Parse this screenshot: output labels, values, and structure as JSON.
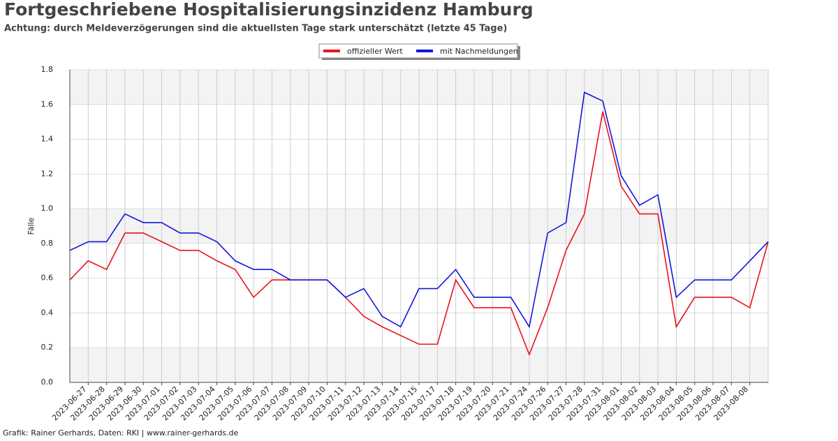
{
  "chart_data": {
    "type": "line",
    "title": "Fortgeschriebene Hospitalisierungsinzidenz Hamburg",
    "subtitle": "Achtung: durch Meldeverzögerungen sind die aktuellsten Tage stark unterschätzt (letzte 45 Tage)",
    "ylabel": "Fälle",
    "footer": "Grafik: Rainer Gerhards, Daten: RKI | www.rainer-gerhards.de",
    "categories": [
      null,
      "2023-06-27",
      "2023-06-28",
      "2023-06-29",
      "2023-06-30",
      "2023-07-01",
      "2023-07-02",
      "2023-07-03",
      "2023-07-04",
      "2023-07-05",
      "2023-07-06",
      "2023-07-07",
      "2023-07-08",
      "2023-07-09",
      "2023-07-10",
      "2023-07-11",
      "2023-07-12",
      "2023-07-13",
      "2023-07-14",
      "2023-07-15",
      "2023-07-17",
      "2023-07-18",
      "2023-07-19",
      "2023-07-20",
      "2023-07-21",
      "2023-07-24",
      "2023-07-26",
      "2023-07-27",
      "2023-07-28",
      "2023-07-31",
      "2023-08-01",
      "2023-08-02",
      "2023-08-03",
      "2023-08-04",
      "2023-08-05",
      "2023-08-06",
      "2023-08-07",
      "2023-08-08",
      null
    ],
    "series": [
      {
        "name": "offizieller Wert",
        "color": "#e8131b",
        "values": [
          0.59,
          0.7,
          0.65,
          0.86,
          0.86,
          0.81,
          0.76,
          0.76,
          0.7,
          0.65,
          0.49,
          0.59,
          0.59,
          0.59,
          0.59,
          0.49,
          0.38,
          0.32,
          0.27,
          0.22,
          0.22,
          0.59,
          0.43,
          0.43,
          0.43,
          0.16,
          0.43,
          0.76,
          0.97,
          1.56,
          1.13,
          0.97,
          0.97,
          0.32,
          0.49,
          0.49,
          0.49,
          0.43,
          0.81
        ]
      },
      {
        "name": "mit Nachmeldungen",
        "color": "#1515e0",
        "values": [
          0.76,
          0.81,
          0.81,
          0.97,
          0.92,
          0.92,
          0.86,
          0.86,
          0.81,
          0.7,
          0.65,
          0.65,
          0.59,
          0.59,
          0.59,
          0.49,
          0.54,
          0.38,
          0.32,
          0.54,
          0.54,
          0.65,
          0.49,
          0.49,
          0.49,
          0.32,
          0.86,
          0.92,
          1.67,
          1.62,
          1.19,
          1.02,
          1.08,
          0.49,
          0.59,
          0.59,
          0.59,
          0.7,
          0.81
        ]
      }
    ],
    "ylim": [
      0,
      1.8
    ],
    "yticks": [
      {
        "value": 0,
        "label": "0.0"
      },
      0.2,
      0.4,
      0.6,
      0.8,
      {
        "value": 1,
        "label": "1.0"
      },
      1.2,
      1.4,
      1.6,
      1.8
    ],
    "grid": true
  }
}
